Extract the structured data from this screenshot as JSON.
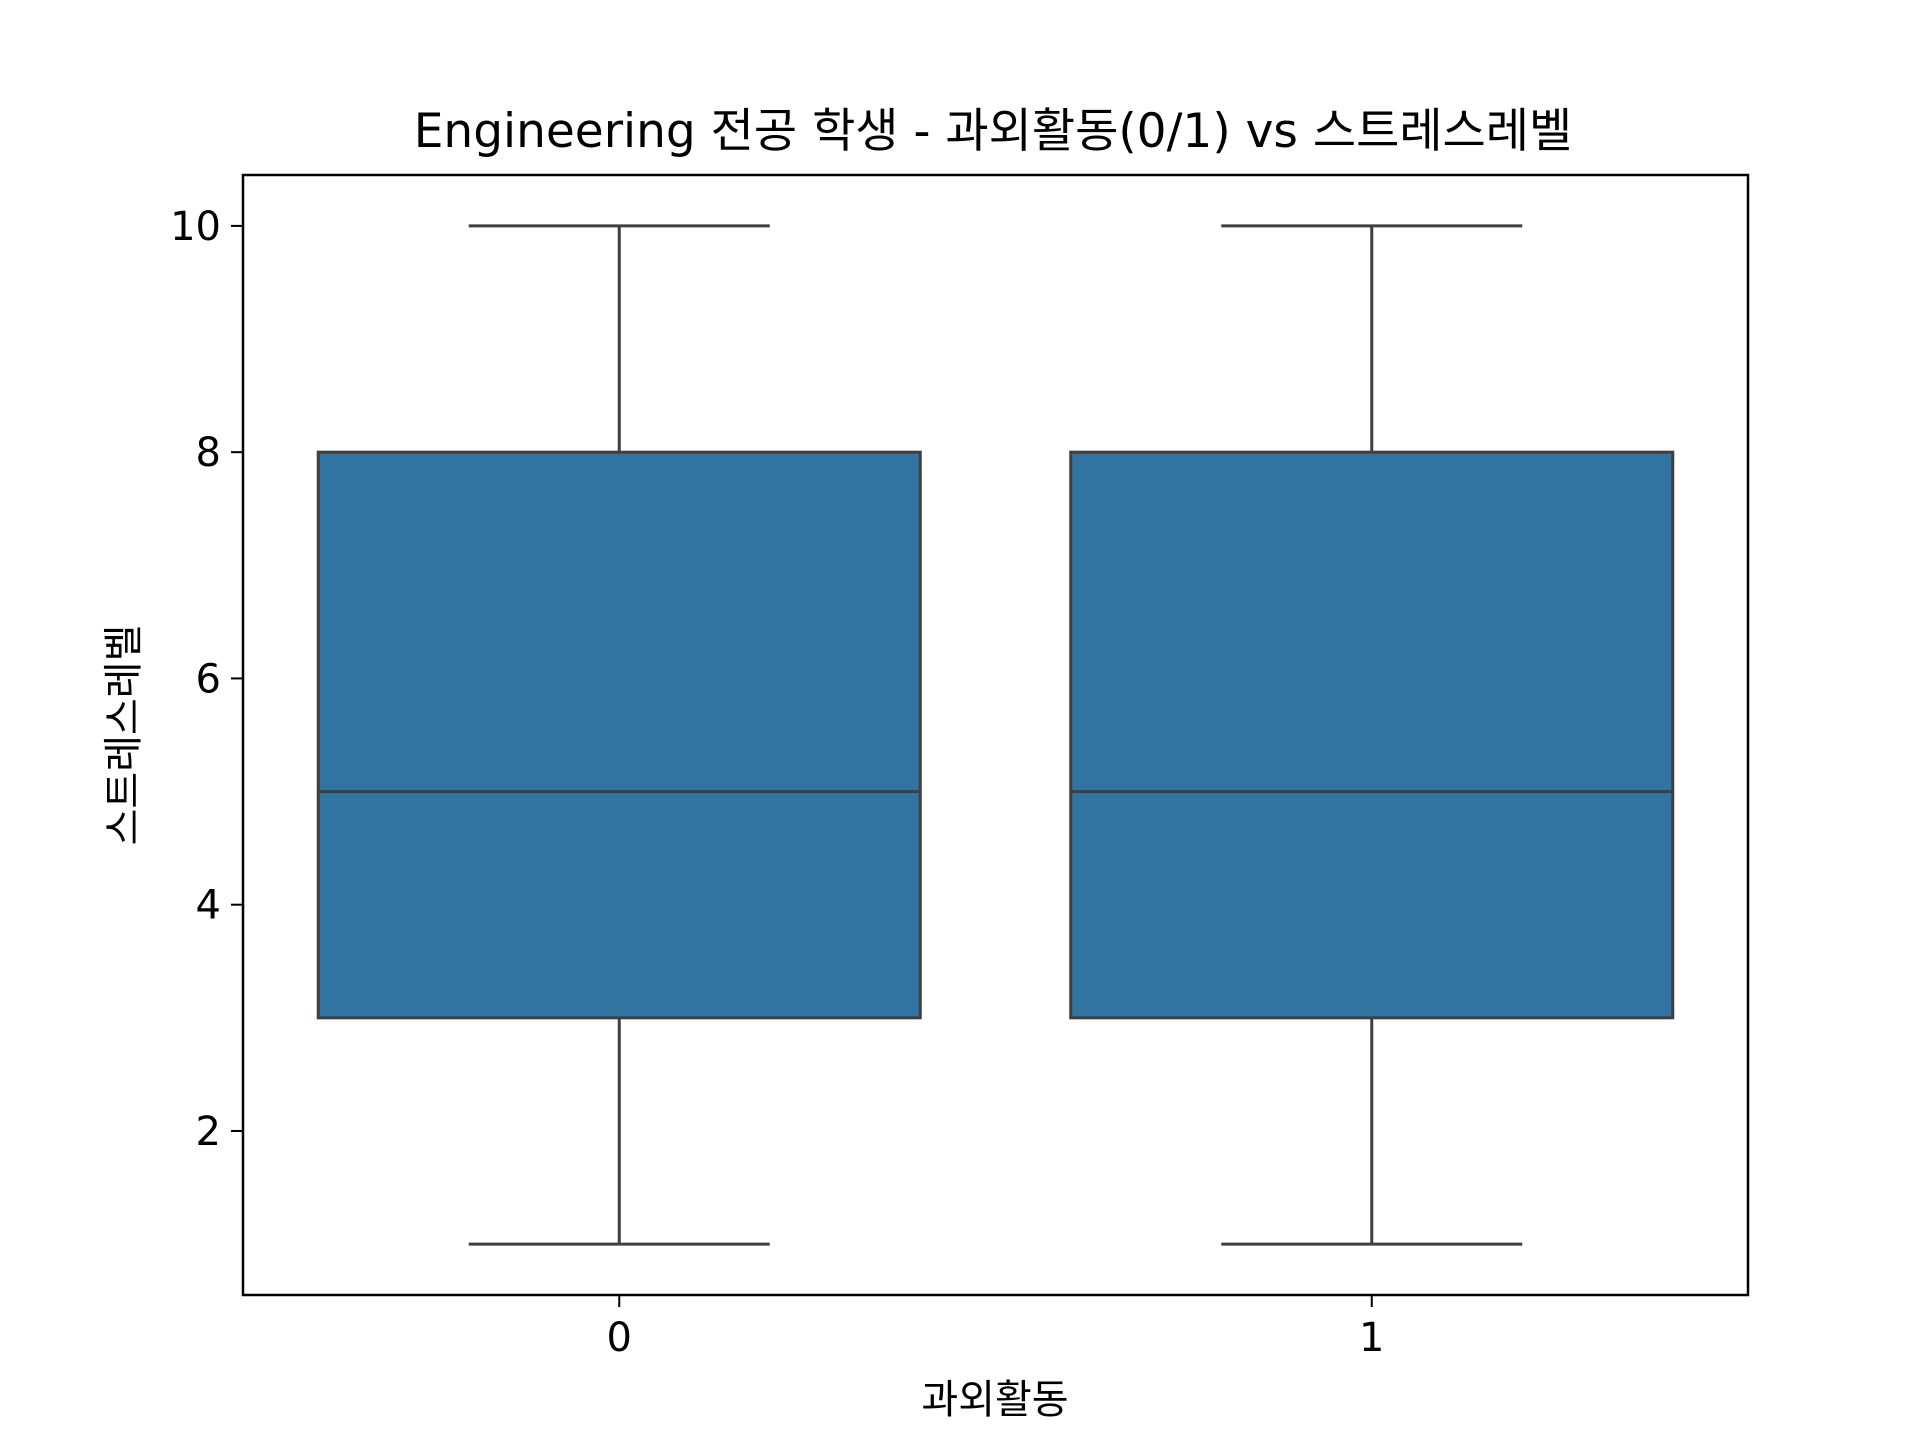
{
  "chart_data": {
    "type": "box",
    "title": "Engineering 전공 학생 - 과외활동(0/1) vs 스트레스레벨",
    "xlabel": "과외활동",
    "ylabel": "스트레스레벨",
    "categories": [
      "0",
      "1"
    ],
    "boxes": [
      {
        "category": "0",
        "whisker_low": 1,
        "q1": 3,
        "median": 5,
        "q3": 8,
        "whisker_high": 10
      },
      {
        "category": "1",
        "whisker_low": 1,
        "q1": 3,
        "median": 5,
        "q3": 8,
        "whisker_high": 10
      }
    ],
    "yticks": [
      "2",
      "4",
      "6",
      "8",
      "10"
    ],
    "ylim": [
      0.55,
      10.45
    ],
    "box_color": "#3274a1",
    "line_color": "#3f3f3f",
    "grid": false,
    "legend": false
  }
}
